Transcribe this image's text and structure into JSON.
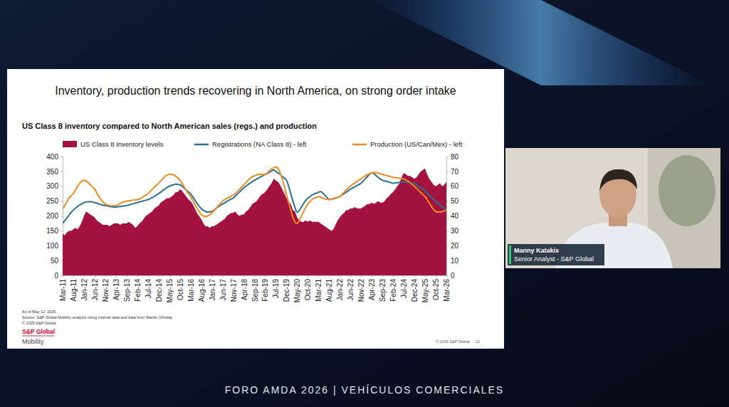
{
  "chart_data": {
    "type": "line",
    "title": "Inventory, production trends recovering in North America, on strong order intake",
    "subtitle": "US Class 8 inventory compared to North American sales (regs.) and production",
    "categories": [
      "Mar-11",
      null,
      null,
      null,
      null,
      "Aug-11",
      null,
      null,
      null,
      null,
      "Jan-12",
      null,
      null,
      null,
      null,
      "Jun-12",
      null,
      null,
      null,
      null,
      "Nov-12",
      null,
      null,
      null,
      null,
      "Apr-13",
      null,
      null,
      null,
      null,
      "Sep-13",
      null,
      null,
      null,
      null,
      "Feb-14",
      null,
      null,
      null,
      null,
      "Jul-14",
      null,
      null,
      null,
      null,
      "Dec-14",
      null,
      null,
      null,
      null,
      "May-15",
      null,
      null,
      null,
      null,
      "Oct-15",
      null,
      null,
      null,
      null,
      "Mar-16",
      null,
      null,
      null,
      null,
      "Aug-16",
      null,
      null,
      null,
      null,
      "Jan-17",
      null,
      null,
      null,
      null,
      "Jun-17",
      null,
      null,
      null,
      null,
      "Nov-17",
      null,
      null,
      null,
      null,
      "Apr-18",
      null,
      null,
      null,
      null,
      "Sep-18",
      null,
      null,
      null,
      null,
      "Feb-19",
      null,
      null,
      null,
      null,
      "Jul-19",
      null,
      null,
      null,
      null,
      "Dec-19",
      null,
      null,
      null,
      null,
      "May-20",
      null,
      null,
      null,
      null,
      "Oct-20",
      null,
      null,
      null,
      null,
      "Mar-21",
      null,
      null,
      null,
      null,
      "Aug-21",
      null,
      null,
      null,
      null,
      "Jan-22",
      null,
      null,
      null,
      null,
      "Jun-22",
      null,
      null,
      null,
      null,
      "Nov-22",
      null,
      null,
      null,
      null,
      "Apr-23",
      null,
      null,
      null,
      null,
      "Sep-23",
      null,
      null,
      null,
      null,
      "Feb-24",
      null,
      null,
      null,
      null,
      "Jul-24",
      null,
      null,
      null,
      null,
      "Dec-24",
      null,
      null,
      null,
      null,
      "May-25",
      null,
      null,
      null,
      null,
      "Oct-25",
      null,
      null,
      null,
      null,
      "Mar-26"
    ],
    "series": [
      {
        "name": "US Class 8 Inventory levels",
        "type": "area",
        "axis": "y2",
        "color": "#a4123f",
        "values": [
          28,
          27,
          29,
          30,
          30,
          31,
          32,
          31,
          33,
          36,
          40,
          43,
          42,
          41,
          40,
          39,
          37,
          36,
          35,
          34,
          34,
          34,
          33,
          34,
          35,
          35,
          35,
          34,
          35,
          35,
          35,
          36,
          35,
          34,
          32,
          33,
          35,
          36,
          38,
          40,
          41,
          42,
          43,
          45,
          46,
          47,
          49,
          50,
          51,
          52,
          52,
          53,
          54,
          56,
          56,
          58,
          57,
          55,
          53,
          51,
          50,
          48,
          45,
          42,
          40,
          38,
          35,
          33,
          33,
          32,
          33,
          33,
          34,
          35,
          36,
          37,
          38,
          40,
          41,
          42,
          42,
          43,
          41,
          40,
          41,
          41,
          43,
          44,
          46,
          48,
          49,
          50,
          52,
          54,
          55,
          56,
          58,
          60,
          62,
          65,
          64,
          63,
          61,
          58,
          55,
          52,
          50,
          48,
          44,
          43,
          39,
          37,
          36,
          36,
          37,
          36,
          37,
          36,
          36,
          36,
          36,
          35,
          34,
          33,
          32,
          31,
          30,
          31,
          34,
          37,
          39,
          41,
          42,
          44,
          44,
          45,
          45,
          46,
          45,
          45,
          45,
          46,
          47,
          48,
          48,
          49,
          48,
          49,
          50,
          49,
          49,
          50,
          52,
          53,
          55,
          56,
          58,
          60,
          62,
          66,
          69,
          68,
          67,
          67,
          66,
          65,
          66,
          68,
          70,
          71,
          72,
          68,
          65,
          63,
          61,
          60,
          61,
          62,
          60,
          61,
          63
        ]
      },
      {
        "name": "Registrations (NA Class 8) - left",
        "type": "line",
        "color": "#2a7091",
        "values": [
          175,
          184,
          193,
          203,
          212,
          220,
          226,
          232,
          237,
          241,
          245,
          247,
          248,
          248,
          247,
          245,
          243,
          240,
          238,
          236,
          235,
          234,
          232,
          231,
          230,
          230,
          231,
          232,
          233,
          234,
          235,
          237,
          239,
          241,
          243,
          245,
          247,
          249,
          251,
          253,
          255,
          258,
          262,
          266,
          270,
          275,
          280,
          286,
          291,
          296,
          300,
          303,
          305,
          307,
          306,
          305,
          300,
          294,
          287,
          281,
          275,
          265,
          254,
          243,
          233,
          225,
          219,
          215,
          213,
          214,
          215,
          220,
          226,
          231,
          236,
          240,
          244,
          249,
          253,
          257,
          260,
          267,
          274,
          281,
          288,
          295,
          300,
          306,
          311,
          316,
          320,
          324,
          328,
          332,
          336,
          340,
          343,
          347,
          351,
          355,
          350,
          345,
          340,
          333,
          327,
          320,
          300,
          275,
          250,
          228,
          212,
          218,
          230,
          242,
          252,
          260,
          265,
          270,
          274,
          277,
          280,
          282,
          278,
          270,
          262,
          255,
          256,
          258,
          260,
          263,
          265,
          270,
          275,
          280,
          285,
          290,
          294,
          298,
          302,
          306,
          310,
          317,
          325,
          333,
          340,
          345,
          343,
          336,
          330,
          325,
          320,
          318,
          316,
          314,
          312,
          310,
          311,
          312,
          313,
          314,
          315,
          314,
          313,
          312,
          311,
          310,
          305,
          300,
          295,
          290,
          285,
          278,
          270,
          263,
          256,
          250,
          244,
          237,
          231,
          225,
          220
        ]
      },
      {
        "name": "Production (US/Can/Mex) - left",
        "type": "line",
        "color": "#ee8a22",
        "values": [
          225,
          235,
          248,
          260,
          268,
          275,
          287,
          300,
          310,
          317,
          320,
          318,
          312,
          305,
          298,
          290,
          278,
          265,
          255,
          246,
          240,
          237,
          235,
          234,
          234,
          235,
          238,
          242,
          246,
          248,
          250,
          251,
          252,
          253,
          254,
          255,
          257,
          261,
          266,
          270,
          275,
          282,
          290,
          297,
          304,
          310,
          318,
          326,
          333,
          338,
          340,
          340,
          338,
          334,
          328,
          320,
          310,
          298,
          286,
          275,
          265,
          253,
          240,
          227,
          215,
          205,
          200,
          198,
          200,
          204,
          210,
          218,
          226,
          234,
          242,
          250,
          255,
          259,
          263,
          266,
          270,
          276,
          283,
          290,
          298,
          305,
          312,
          320,
          327,
          332,
          335,
          338,
          340,
          340,
          339,
          340,
          345,
          352,
          358,
          362,
          365,
          360,
          345,
          325,
          300,
          270,
          245,
          220,
          195,
          180,
          175,
          185,
          200,
          215,
          228,
          240,
          248,
          255,
          260,
          263,
          265,
          263,
          260,
          257,
          256,
          255,
          256,
          258,
          260,
          262,
          265,
          272,
          280,
          287,
          294,
          300,
          306,
          311,
          316,
          321,
          325,
          330,
          335,
          339,
          342,
          345,
          347,
          346,
          345,
          342,
          340,
          338,
          336,
          334,
          332,
          330,
          329,
          328,
          327,
          326,
          325,
          321,
          317,
          312,
          306,
          300,
          293,
          286,
          279,
          272,
          265,
          255,
          243,
          232,
          222,
          215,
          213,
          213,
          215,
          217,
          220
        ]
      }
    ],
    "ylim": [
      0,
      400
    ],
    "yticks": [
      0,
      50,
      100,
      150,
      200,
      250,
      300,
      350,
      400
    ],
    "y2lim": [
      0,
      80
    ],
    "y2ticks": [
      0,
      10,
      20,
      30,
      40,
      50,
      60,
      70,
      80
    ],
    "grid": false,
    "legend": "top"
  },
  "slide": {
    "notes": [
      "As of May 12, 2026",
      "Source: S&P Global Mobility analysis using internal data and data from Wards (Omdia)",
      "© 2025 S&P Global"
    ],
    "logo": [
      "S&P Global",
      "Mobility"
    ],
    "copyright": "© 2026 S&P Global",
    "page": "21"
  },
  "speaker": {
    "name": "Manny Katakis",
    "role": "Senior Analyst - S&P Global"
  },
  "footer": "FORO AMDA 2026 | VEHÍCULOS COMERCIALES"
}
